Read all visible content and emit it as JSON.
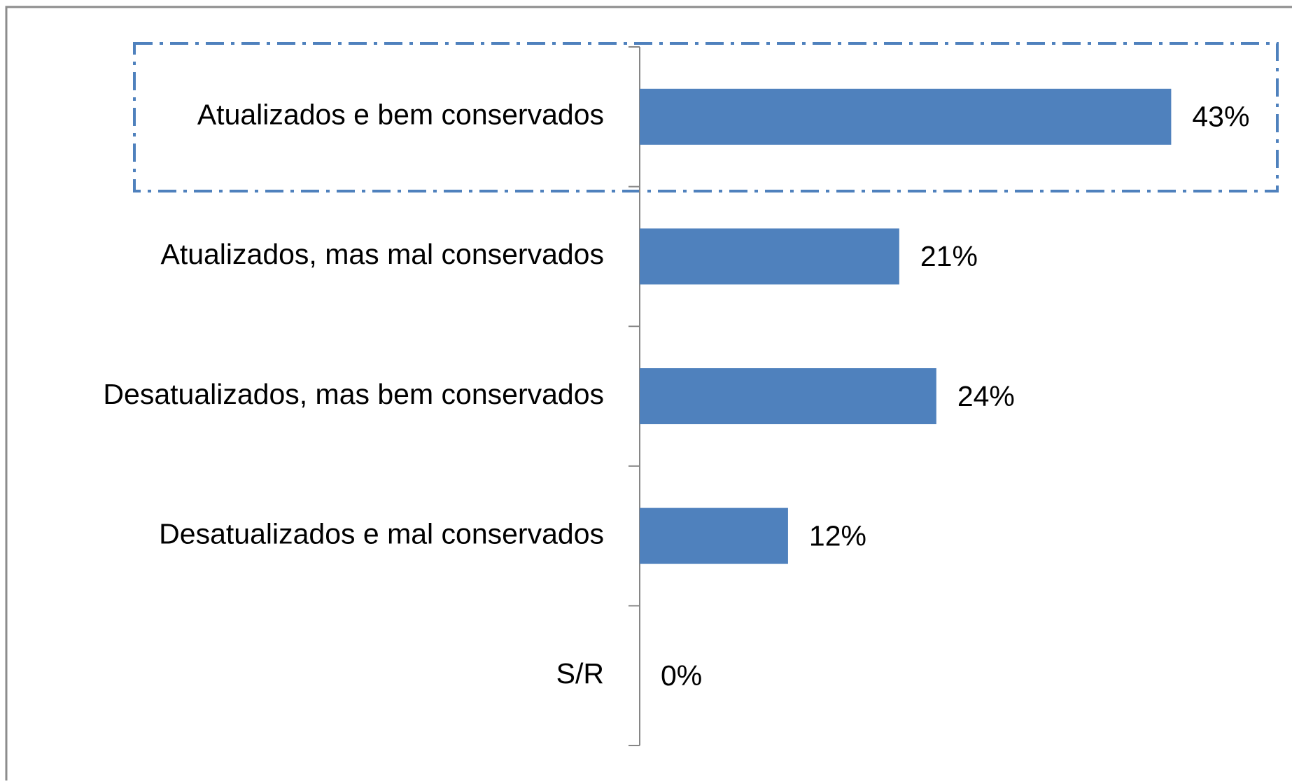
{
  "chart_data": {
    "type": "bar",
    "orientation": "horizontal",
    "categories": [
      "Atualizados e bem conservados",
      "Atualizados, mas mal conservados",
      "Desatualizados, mas bem conservados",
      "Desatualizados e mal conservados",
      "S/R"
    ],
    "values": [
      43,
      21,
      24,
      12,
      0
    ],
    "value_labels": [
      "43%",
      "21%",
      "24%",
      "12%",
      "0%"
    ],
    "color": "#4f81bd"
  }
}
